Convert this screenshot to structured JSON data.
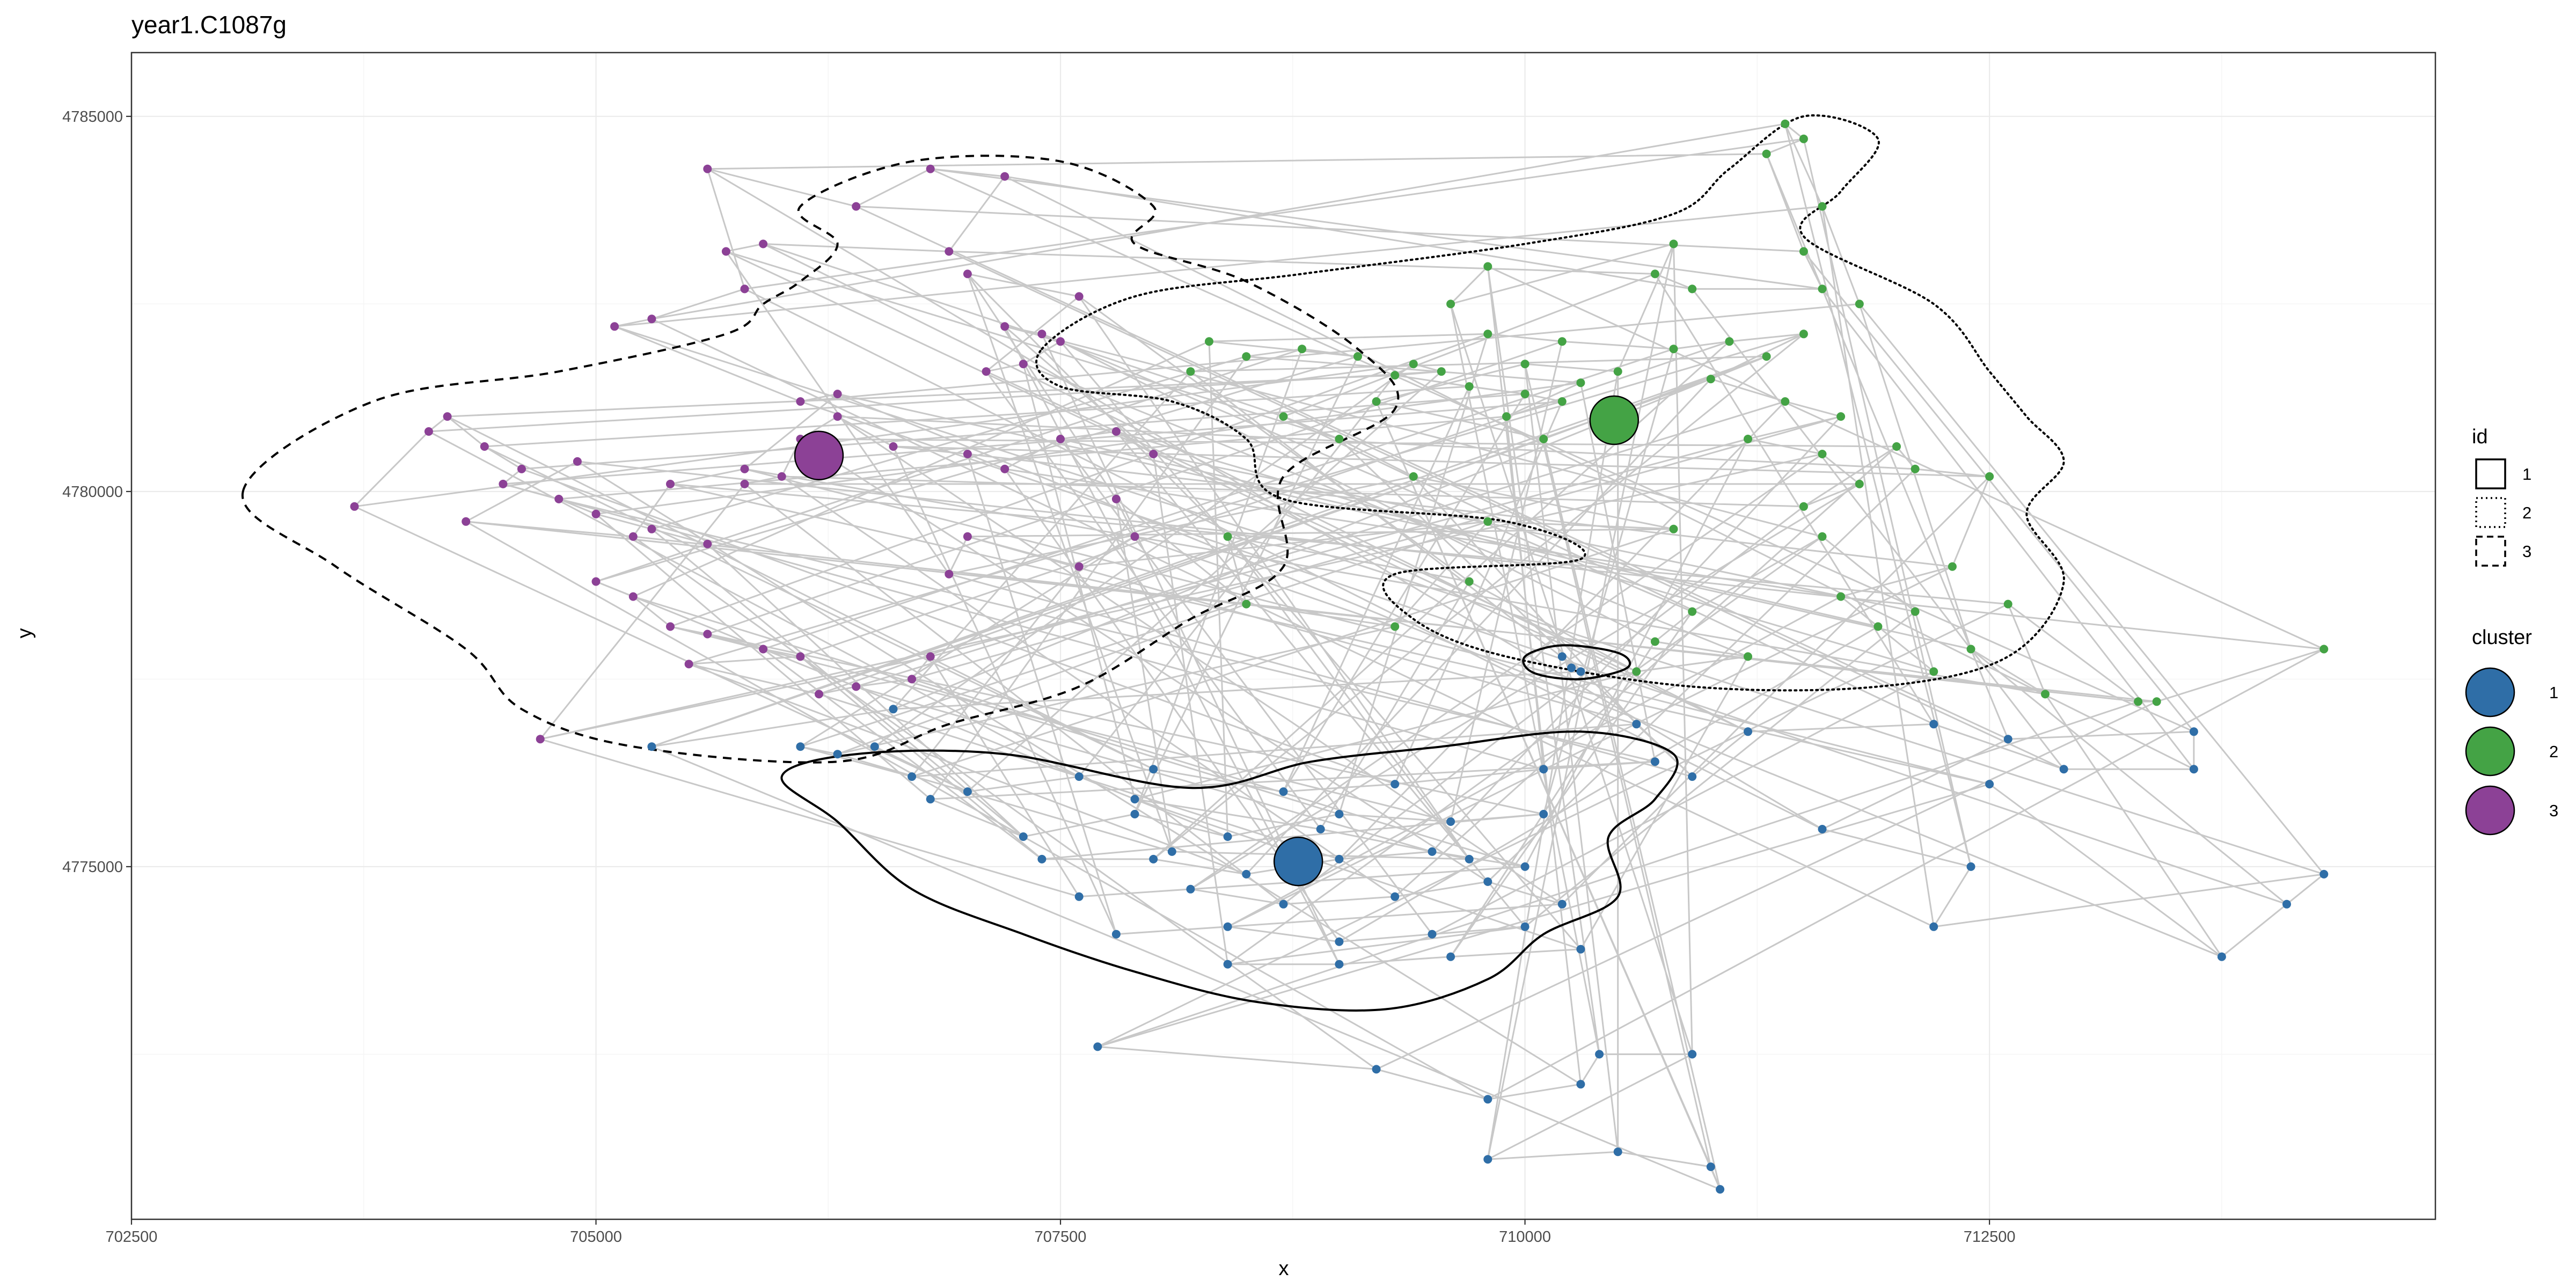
{
  "chart_data": {
    "type": "scatter",
    "title": "year1.C1087g",
    "xlabel": "x",
    "ylabel": "y",
    "xlim": [
      702500,
      714900
    ],
    "ylim": [
      4770300,
      4785850
    ],
    "x_ticks": [
      702500,
      705000,
      707500,
      710000,
      712500
    ],
    "x_tick_labels": [
      "702500",
      "705000",
      "707500",
      "710000",
      "712500"
    ],
    "y_ticks": [
      4775000,
      4780000,
      4785000
    ],
    "y_tick_labels": [
      "4775000",
      "4780000",
      "4785000"
    ],
    "grid": true,
    "colors": {
      "cluster_1": "#2f6ea7",
      "cluster_2": "#44a345",
      "cluster_3": "#8c4196",
      "path": "#c8c8c8",
      "grid_major": "#ebebeb",
      "grid_minor": "#f5f5f5",
      "panel_border": "#333333"
    },
    "legend": {
      "placement": "right",
      "id": {
        "title": "id",
        "entries": [
          {
            "label": "1",
            "linetype": "solid"
          },
          {
            "label": "2",
            "linetype": "dotted"
          },
          {
            "label": "3",
            "linetype": "dashed"
          }
        ]
      },
      "cluster": {
        "title": "cluster",
        "entries": [
          {
            "label": "1",
            "color": "#2f6ea7"
          },
          {
            "label": "2",
            "color": "#44a345"
          },
          {
            "label": "3",
            "color": "#8c4196"
          }
        ]
      }
    },
    "centroids": [
      {
        "cluster": "1",
        "x": 708780,
        "y": 4775070
      },
      {
        "cluster": "2",
        "x": 710480,
        "y": 4780950
      },
      {
        "cluster": "3",
        "x": 706200,
        "y": 4780480
      }
    ],
    "points": {
      "cluster_1": [
        [
          706500,
          4776600
        ],
        [
          707000,
          4776000
        ],
        [
          707600,
          4776200
        ],
        [
          708000,
          4776300
        ],
        [
          708700,
          4776000
        ],
        [
          709300,
          4776100
        ],
        [
          710100,
          4776300
        ],
        [
          710700,
          4776400
        ],
        [
          706800,
          4775900
        ],
        [
          707300,
          4775400
        ],
        [
          707900,
          4775700
        ],
        [
          708400,
          4775400
        ],
        [
          709000,
          4775700
        ],
        [
          709600,
          4775600
        ],
        [
          710100,
          4775700
        ],
        [
          707400,
          4775100
        ],
        [
          708000,
          4775100
        ],
        [
          708500,
          4774900
        ],
        [
          709000,
          4775100
        ],
        [
          709500,
          4775200
        ],
        [
          710000,
          4775000
        ],
        [
          707600,
          4774600
        ],
        [
          708200,
          4774700
        ],
        [
          708700,
          4774500
        ],
        [
          709300,
          4774600
        ],
        [
          709800,
          4774800
        ],
        [
          710200,
          4774500
        ],
        [
          707800,
          4774100
        ],
        [
          708400,
          4774200
        ],
        [
          709000,
          4774000
        ],
        [
          709500,
          4774100
        ],
        [
          710000,
          4774200
        ],
        [
          708400,
          4773700
        ],
        [
          709000,
          4773700
        ],
        [
          709600,
          4773800
        ],
        [
          710300,
          4773900
        ],
        [
          707900,
          4775900
        ],
        [
          708900,
          4775500
        ],
        [
          709700,
          4775100
        ],
        [
          708100,
          4775200
        ],
        [
          706300,
          4776500
        ],
        [
          706100,
          4776600
        ],
        [
          706700,
          4776200
        ],
        [
          710600,
          4776900
        ],
        [
          710900,
          4776200
        ],
        [
          711200,
          4776800
        ],
        [
          712200,
          4776900
        ],
        [
          712900,
          4776300
        ],
        [
          713600,
          4776300
        ],
        [
          713600,
          4776800
        ],
        [
          712600,
          4776700
        ],
        [
          711600,
          4775500
        ],
        [
          712400,
          4775000
        ],
        [
          712200,
          4774200
        ],
        [
          714300,
          4774900
        ],
        [
          714100,
          4774500
        ],
        [
          713750,
          4773800
        ],
        [
          712500,
          4776100
        ],
        [
          707700,
          4772600
        ],
        [
          709200,
          4772300
        ],
        [
          709800,
          4771900
        ],
        [
          710300,
          4772100
        ],
        [
          710400,
          4772500
        ],
        [
          710900,
          4772500
        ],
        [
          709800,
          4771100
        ],
        [
          710500,
          4771200
        ],
        [
          711000,
          4771000
        ],
        [
          711050,
          4770700
        ],
        [
          705300,
          4776600
        ],
        [
          706600,
          4777100
        ],
        [
          710300,
          4777600
        ],
        [
          710200,
          4777800
        ],
        [
          710250,
          4777650
        ]
      ],
      "cluster_2": [
        [
          709400,
          4781700
        ],
        [
          709550,
          4781600
        ],
        [
          709300,
          4781550
        ],
        [
          709700,
          4781400
        ],
        [
          710000,
          4781300
        ],
        [
          710200,
          4781200
        ],
        [
          709900,
          4781000
        ],
        [
          710300,
          4781450
        ],
        [
          708500,
          4781800
        ],
        [
          708800,
          4781900
        ],
        [
          709100,
          4781800
        ],
        [
          708300,
          4782000
        ],
        [
          709800,
          4782100
        ],
        [
          710200,
          4782000
        ],
        [
          710800,
          4781900
        ],
        [
          711100,
          4782000
        ],
        [
          711500,
          4782100
        ],
        [
          711000,
          4781500
        ],
        [
          711400,
          4781200
        ],
        [
          711700,
          4781000
        ],
        [
          711200,
          4780700
        ],
        [
          711600,
          4780500
        ],
        [
          711800,
          4780100
        ],
        [
          711500,
          4779800
        ],
        [
          712000,
          4780600
        ],
        [
          712100,
          4780300
        ],
        [
          712500,
          4780200
        ],
        [
          712300,
          4779000
        ],
        [
          711700,
          4778600
        ],
        [
          711900,
          4778200
        ],
        [
          712200,
          4777600
        ],
        [
          712100,
          4778400
        ],
        [
          711600,
          4779400
        ],
        [
          710900,
          4778400
        ],
        [
          710700,
          4778000
        ],
        [
          711200,
          4777800
        ],
        [
          710600,
          4777600
        ],
        [
          709700,
          4778800
        ],
        [
          708400,
          4779400
        ],
        [
          708500,
          4778500
        ],
        [
          709300,
          4778200
        ],
        [
          709800,
          4779600
        ],
        [
          710800,
          4779500
        ],
        [
          709400,
          4780200
        ],
        [
          709000,
          4780700
        ],
        [
          708700,
          4781000
        ],
        [
          710700,
          4782900
        ],
        [
          710900,
          4782700
        ],
        [
          711600,
          4782700
        ],
        [
          711500,
          4783200
        ],
        [
          711300,
          4784500
        ],
        [
          711500,
          4784700
        ],
        [
          711400,
          4784900
        ],
        [
          711600,
          4783800
        ],
        [
          711800,
          4782500
        ],
        [
          712400,
          4777900
        ],
        [
          712800,
          4777300
        ],
        [
          712600,
          4778500
        ],
        [
          713300,
          4777200
        ],
        [
          713400,
          4777200
        ],
        [
          714300,
          4777900
        ],
        [
          709800,
          4783000
        ],
        [
          709600,
          4782500
        ],
        [
          710800,
          4783300
        ],
        [
          710500,
          4781600
        ],
        [
          710000,
          4781700
        ],
        [
          709200,
          4781200
        ],
        [
          710100,
          4780700
        ],
        [
          711300,
          4781800
        ],
        [
          708200,
          4781600
        ]
      ],
      "cluster_3": [
        [
          703700,
          4779800
        ],
        [
          704100,
          4780800
        ],
        [
          704200,
          4781000
        ],
        [
          704400,
          4780600
        ],
        [
          704600,
          4780300
        ],
        [
          704500,
          4780100
        ],
        [
          704800,
          4779900
        ],
        [
          705000,
          4779700
        ],
        [
          705300,
          4779500
        ],
        [
          705600,
          4779300
        ],
        [
          705000,
          4778800
        ],
        [
          705200,
          4778600
        ],
        [
          705400,
          4778200
        ],
        [
          705600,
          4778100
        ],
        [
          705900,
          4777900
        ],
        [
          706100,
          4777800
        ],
        [
          705500,
          4777700
        ],
        [
          706200,
          4777300
        ],
        [
          706400,
          4777400
        ],
        [
          706700,
          4777500
        ],
        [
          706800,
          4777800
        ],
        [
          704700,
          4776700
        ],
        [
          705800,
          4780100
        ],
        [
          706000,
          4780200
        ],
        [
          706100,
          4780700
        ],
        [
          706300,
          4781000
        ],
        [
          706600,
          4780600
        ],
        [
          707000,
          4780500
        ],
        [
          707200,
          4780300
        ],
        [
          707500,
          4780700
        ],
        [
          707800,
          4780800
        ],
        [
          708000,
          4780500
        ],
        [
          707200,
          4782200
        ],
        [
          707400,
          4782100
        ],
        [
          707500,
          4782000
        ],
        [
          707300,
          4781700
        ],
        [
          707100,
          4781600
        ],
        [
          707600,
          4782600
        ],
        [
          707000,
          4782900
        ],
        [
          707800,
          4779900
        ],
        [
          707900,
          4779400
        ],
        [
          707600,
          4779000
        ],
        [
          707000,
          4779400
        ],
        [
          706900,
          4778900
        ],
        [
          705700,
          4783200
        ],
        [
          705900,
          4783300
        ],
        [
          706900,
          4783200
        ],
        [
          707200,
          4784200
        ],
        [
          706800,
          4784300
        ],
        [
          706400,
          4783800
        ],
        [
          705600,
          4784300
        ],
        [
          705800,
          4782700
        ],
        [
          705300,
          4782300
        ],
        [
          705100,
          4782200
        ],
        [
          706100,
          4781200
        ],
        [
          706300,
          4781300
        ],
        [
          705800,
          4780300
        ],
        [
          705400,
          4780100
        ],
        [
          705200,
          4779400
        ],
        [
          704300,
          4779600
        ],
        [
          704900,
          4780400
        ]
      ]
    }
  }
}
